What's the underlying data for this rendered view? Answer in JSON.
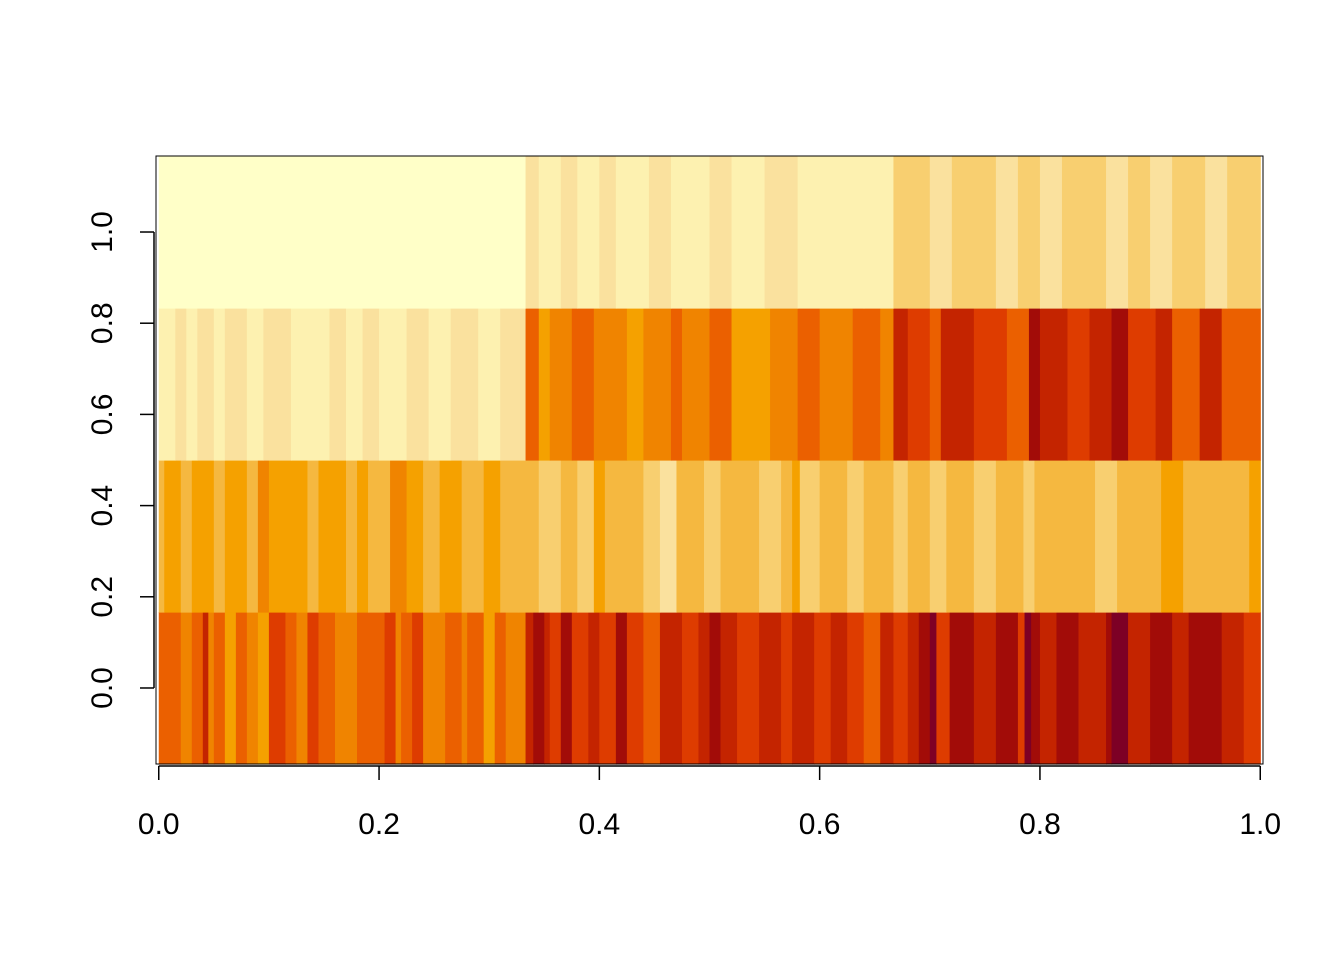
{
  "chart_data": {
    "type": "heatmap",
    "title": "",
    "xlabel": "",
    "ylabel": "",
    "xlim": [
      -0.0025,
      1.0025
    ],
    "ylim": [
      -0.1667,
      1.1667
    ],
    "x_ticks": [
      "0.0",
      "0.2",
      "0.4",
      "0.6",
      "0.8",
      "1.0"
    ],
    "y_ticks": [
      "0.0",
      "0.2",
      "0.4",
      "0.6",
      "0.8",
      "1.0"
    ],
    "grid": false,
    "legend": "none",
    "palette": [
      "#FFFFC8",
      "#FDF1B0",
      "#FAE19E",
      "#F8CF70",
      "#F5B840",
      "#F5A100",
      "#F08400",
      "#EB6000",
      "#DE3C00",
      "#C42400",
      "#A20C08",
      "#7D0025"
    ],
    "row_centers": [
      0.0,
      0.3333,
      0.6667,
      1.0
    ],
    "rows": [
      {
        "y": 0.0,
        "segments": [
          [
            0.0,
            0.02,
            7
          ],
          [
            0.02,
            0.03,
            6
          ],
          [
            0.03,
            0.04,
            7
          ],
          [
            0.04,
            0.045,
            9
          ],
          [
            0.045,
            0.05,
            6
          ],
          [
            0.05,
            0.06,
            7
          ],
          [
            0.06,
            0.07,
            5
          ],
          [
            0.07,
            0.08,
            7
          ],
          [
            0.08,
            0.09,
            6
          ],
          [
            0.09,
            0.1,
            5
          ],
          [
            0.1,
            0.115,
            8
          ],
          [
            0.115,
            0.125,
            7
          ],
          [
            0.125,
            0.135,
            6
          ],
          [
            0.135,
            0.145,
            8
          ],
          [
            0.145,
            0.16,
            7
          ],
          [
            0.16,
            0.18,
            6
          ],
          [
            0.18,
            0.205,
            7
          ],
          [
            0.205,
            0.215,
            8
          ],
          [
            0.215,
            0.22,
            6
          ],
          [
            0.22,
            0.23,
            7
          ],
          [
            0.23,
            0.24,
            8
          ],
          [
            0.24,
            0.26,
            6
          ],
          [
            0.26,
            0.275,
            7
          ],
          [
            0.275,
            0.28,
            6
          ],
          [
            0.28,
            0.295,
            7
          ],
          [
            0.295,
            0.305,
            5
          ],
          [
            0.305,
            0.315,
            7
          ],
          [
            0.315,
            0.333,
            6
          ],
          [
            0.333,
            0.34,
            9
          ],
          [
            0.34,
            0.35,
            10
          ],
          [
            0.35,
            0.355,
            9
          ],
          [
            0.355,
            0.365,
            8
          ],
          [
            0.365,
            0.375,
            10
          ],
          [
            0.375,
            0.39,
            8
          ],
          [
            0.39,
            0.4,
            9
          ],
          [
            0.4,
            0.415,
            8
          ],
          [
            0.415,
            0.425,
            10
          ],
          [
            0.425,
            0.44,
            8
          ],
          [
            0.44,
            0.455,
            7
          ],
          [
            0.455,
            0.475,
            9
          ],
          [
            0.475,
            0.49,
            8
          ],
          [
            0.49,
            0.5,
            9
          ],
          [
            0.5,
            0.51,
            10
          ],
          [
            0.51,
            0.525,
            9
          ],
          [
            0.525,
            0.545,
            8
          ],
          [
            0.545,
            0.565,
            9
          ],
          [
            0.565,
            0.575,
            8
          ],
          [
            0.575,
            0.595,
            9
          ],
          [
            0.595,
            0.61,
            8
          ],
          [
            0.61,
            0.625,
            9
          ],
          [
            0.625,
            0.64,
            8
          ],
          [
            0.64,
            0.655,
            7
          ],
          [
            0.655,
            0.667,
            9
          ],
          [
            0.667,
            0.68,
            8
          ],
          [
            0.68,
            0.69,
            9
          ],
          [
            0.69,
            0.7,
            10
          ],
          [
            0.7,
            0.706,
            11
          ],
          [
            0.706,
            0.718,
            8
          ],
          [
            0.718,
            0.74,
            10
          ],
          [
            0.74,
            0.76,
            9
          ],
          [
            0.76,
            0.78,
            10
          ],
          [
            0.78,
            0.786,
            8
          ],
          [
            0.786,
            0.792,
            11
          ],
          [
            0.792,
            0.8,
            10
          ],
          [
            0.8,
            0.815,
            9
          ],
          [
            0.815,
            0.835,
            10
          ],
          [
            0.835,
            0.86,
            9
          ],
          [
            0.86,
            0.865,
            10
          ],
          [
            0.865,
            0.88,
            11
          ],
          [
            0.88,
            0.9,
            9
          ],
          [
            0.9,
            0.92,
            10
          ],
          [
            0.92,
            0.935,
            9
          ],
          [
            0.935,
            0.965,
            10
          ],
          [
            0.965,
            0.985,
            9
          ],
          [
            0.985,
            1.0,
            8
          ]
        ]
      },
      {
        "y": 0.3333,
        "segments": [
          [
            0.0,
            0.005,
            4
          ],
          [
            0.005,
            0.02,
            5
          ],
          [
            0.02,
            0.03,
            4
          ],
          [
            0.03,
            0.05,
            5
          ],
          [
            0.05,
            0.06,
            4
          ],
          [
            0.06,
            0.08,
            5
          ],
          [
            0.08,
            0.09,
            4
          ],
          [
            0.09,
            0.1,
            6
          ],
          [
            0.1,
            0.135,
            5
          ],
          [
            0.135,
            0.145,
            4
          ],
          [
            0.145,
            0.17,
            5
          ],
          [
            0.17,
            0.18,
            4
          ],
          [
            0.18,
            0.19,
            5
          ],
          [
            0.19,
            0.21,
            4
          ],
          [
            0.21,
            0.225,
            6
          ],
          [
            0.225,
            0.24,
            5
          ],
          [
            0.24,
            0.255,
            4
          ],
          [
            0.255,
            0.275,
            5
          ],
          [
            0.275,
            0.295,
            4
          ],
          [
            0.295,
            0.31,
            5
          ],
          [
            0.31,
            0.326,
            4
          ],
          [
            0.326,
            0.345,
            4
          ],
          [
            0.345,
            0.365,
            3
          ],
          [
            0.365,
            0.38,
            4
          ],
          [
            0.38,
            0.395,
            3
          ],
          [
            0.395,
            0.405,
            5
          ],
          [
            0.405,
            0.42,
            4
          ],
          [
            0.42,
            0.44,
            4
          ],
          [
            0.44,
            0.455,
            3
          ],
          [
            0.455,
            0.47,
            2
          ],
          [
            0.47,
            0.495,
            4
          ],
          [
            0.495,
            0.51,
            3
          ],
          [
            0.51,
            0.545,
            4
          ],
          [
            0.545,
            0.565,
            3
          ],
          [
            0.565,
            0.575,
            4
          ],
          [
            0.575,
            0.582,
            5
          ],
          [
            0.582,
            0.6,
            3
          ],
          [
            0.6,
            0.625,
            4
          ],
          [
            0.625,
            0.64,
            3
          ],
          [
            0.64,
            0.667,
            4
          ],
          [
            0.667,
            0.68,
            3
          ],
          [
            0.68,
            0.7,
            4
          ],
          [
            0.7,
            0.715,
            3
          ],
          [
            0.715,
            0.74,
            4
          ],
          [
            0.74,
            0.76,
            3
          ],
          [
            0.76,
            0.785,
            4
          ],
          [
            0.785,
            0.795,
            3
          ],
          [
            0.795,
            0.85,
            4
          ],
          [
            0.85,
            0.87,
            3
          ],
          [
            0.87,
            0.91,
            4
          ],
          [
            0.91,
            0.93,
            5
          ],
          [
            0.93,
            0.99,
            4
          ],
          [
            0.99,
            1.0,
            5
          ]
        ]
      },
      {
        "y": 0.6667,
        "segments": [
          [
            0.0,
            0.015,
            1
          ],
          [
            0.015,
            0.025,
            2
          ],
          [
            0.025,
            0.035,
            1
          ],
          [
            0.035,
            0.05,
            2
          ],
          [
            0.05,
            0.06,
            1
          ],
          [
            0.06,
            0.08,
            2
          ],
          [
            0.08,
            0.095,
            1
          ],
          [
            0.095,
            0.12,
            2
          ],
          [
            0.12,
            0.155,
            1
          ],
          [
            0.155,
            0.17,
            2
          ],
          [
            0.17,
            0.185,
            1
          ],
          [
            0.185,
            0.2,
            2
          ],
          [
            0.2,
            0.225,
            1
          ],
          [
            0.225,
            0.245,
            2
          ],
          [
            0.245,
            0.265,
            1
          ],
          [
            0.265,
            0.29,
            2
          ],
          [
            0.29,
            0.31,
            1
          ],
          [
            0.31,
            0.333,
            2
          ],
          [
            0.333,
            0.345,
            7
          ],
          [
            0.345,
            0.355,
            5
          ],
          [
            0.355,
            0.375,
            6
          ],
          [
            0.375,
            0.395,
            7
          ],
          [
            0.395,
            0.425,
            6
          ],
          [
            0.425,
            0.44,
            5
          ],
          [
            0.44,
            0.465,
            6
          ],
          [
            0.465,
            0.475,
            7
          ],
          [
            0.475,
            0.5,
            6
          ],
          [
            0.5,
            0.52,
            7
          ],
          [
            0.52,
            0.555,
            5
          ],
          [
            0.555,
            0.58,
            6
          ],
          [
            0.58,
            0.6,
            7
          ],
          [
            0.6,
            0.63,
            6
          ],
          [
            0.63,
            0.655,
            7
          ],
          [
            0.655,
            0.667,
            6
          ],
          [
            0.667,
            0.68,
            9
          ],
          [
            0.68,
            0.7,
            8
          ],
          [
            0.7,
            0.71,
            7
          ],
          [
            0.71,
            0.74,
            9
          ],
          [
            0.74,
            0.77,
            8
          ],
          [
            0.77,
            0.79,
            7
          ],
          [
            0.79,
            0.8,
            10
          ],
          [
            0.8,
            0.825,
            9
          ],
          [
            0.825,
            0.845,
            8
          ],
          [
            0.845,
            0.865,
            9
          ],
          [
            0.865,
            0.88,
            10
          ],
          [
            0.88,
            0.905,
            8
          ],
          [
            0.905,
            0.92,
            9
          ],
          [
            0.92,
            0.945,
            7
          ],
          [
            0.945,
            0.965,
            9
          ],
          [
            0.965,
            1.0,
            7
          ]
        ]
      },
      {
        "y": 1.0,
        "segments": [
          [
            0.0,
            0.333,
            0
          ],
          [
            0.333,
            0.345,
            2
          ],
          [
            0.345,
            0.365,
            1
          ],
          [
            0.365,
            0.38,
            2
          ],
          [
            0.38,
            0.4,
            1
          ],
          [
            0.4,
            0.415,
            2
          ],
          [
            0.415,
            0.445,
            1
          ],
          [
            0.445,
            0.465,
            2
          ],
          [
            0.465,
            0.5,
            1
          ],
          [
            0.5,
            0.52,
            2
          ],
          [
            0.52,
            0.55,
            1
          ],
          [
            0.55,
            0.58,
            2
          ],
          [
            0.58,
            0.64,
            1
          ],
          [
            0.64,
            0.667,
            1
          ],
          [
            0.667,
            0.7,
            3
          ],
          [
            0.7,
            0.72,
            2
          ],
          [
            0.72,
            0.76,
            3
          ],
          [
            0.76,
            0.78,
            2
          ],
          [
            0.78,
            0.8,
            3
          ],
          [
            0.8,
            0.82,
            2
          ],
          [
            0.82,
            0.86,
            3
          ],
          [
            0.86,
            0.88,
            2
          ],
          [
            0.88,
            0.9,
            3
          ],
          [
            0.9,
            0.92,
            2
          ],
          [
            0.92,
            0.95,
            3
          ],
          [
            0.95,
            0.97,
            2
          ],
          [
            0.97,
            1.0,
            3
          ]
        ]
      }
    ]
  }
}
